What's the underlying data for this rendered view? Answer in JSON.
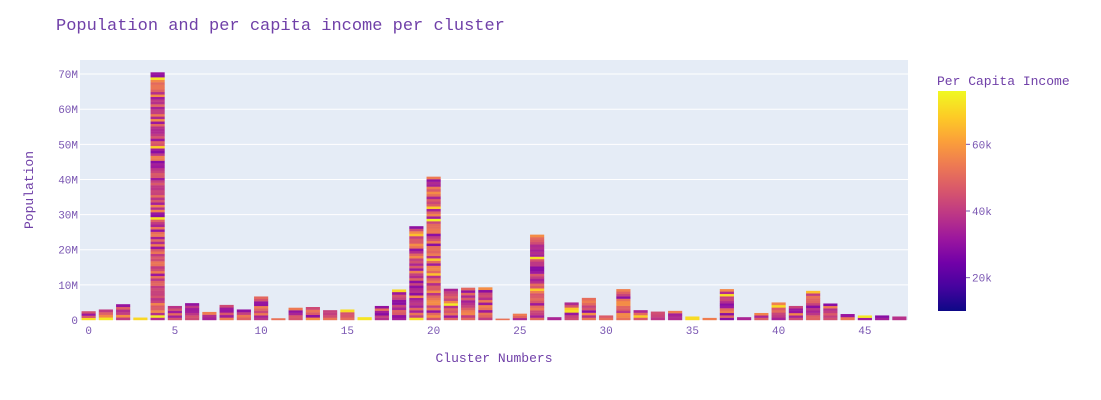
{
  "chart_data": {
    "type": "bar",
    "title": "Population and per capita income per cluster",
    "xlabel": "Cluster Numbers",
    "ylabel": "Population",
    "xlim": [
      -0.5,
      47.5
    ],
    "ylim": [
      0,
      74000000
    ],
    "x_ticks": [
      0,
      5,
      10,
      15,
      20,
      25,
      30,
      35,
      40,
      45
    ],
    "y_ticks": [
      0,
      10000000,
      20000000,
      30000000,
      40000000,
      50000000,
      60000000,
      70000000
    ],
    "y_tick_labels": [
      "0",
      "10M",
      "20M",
      "30M",
      "40M",
      "50M",
      "60M",
      "70M"
    ],
    "grid": true,
    "stacked": true,
    "colorbar": {
      "title": "Per Capita Income",
      "min": 10000,
      "max": 76000,
      "ticks": [
        20000,
        40000,
        60000
      ],
      "tick_labels": [
        "20k",
        "40k",
        "60k"
      ]
    },
    "clusters": [
      0,
      1,
      2,
      3,
      4,
      5,
      6,
      7,
      8,
      9,
      10,
      11,
      12,
      13,
      14,
      15,
      16,
      17,
      18,
      19,
      20,
      21,
      22,
      23,
      24,
      25,
      26,
      27,
      28,
      29,
      30,
      31,
      32,
      33,
      34,
      35,
      36,
      37,
      38,
      39,
      40,
      41,
      42,
      43,
      44,
      45,
      46,
      47
    ],
    "population_totals": [
      2500000,
      3000000,
      4500000,
      700000,
      70500000,
      4000000,
      4800000,
      2300000,
      4300000,
      3000000,
      6700000,
      500000,
      3500000,
      3700000,
      2800000,
      3000000,
      800000,
      4000000,
      8700000,
      26700000,
      40800000,
      8900000,
      9200000,
      9300000,
      400000,
      1800000,
      24300000,
      800000,
      5000000,
      6300000,
      1300000,
      8800000,
      2800000,
      2400000,
      2600000,
      1000000,
      600000,
      8800000,
      800000,
      2000000,
      5000000,
      4000000,
      8300000,
      4700000,
      1700000,
      1300000,
      1300000,
      1000000
    ]
  }
}
